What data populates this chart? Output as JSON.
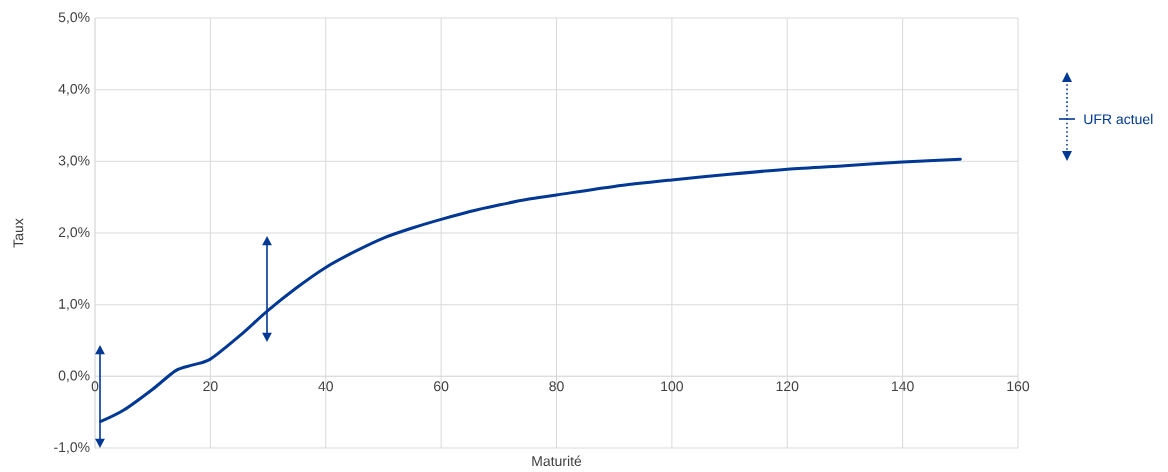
{
  "chart_data": {
    "type": "line",
    "xlabel": "Maturité",
    "ylabel": "Taux",
    "x": [
      1,
      5,
      10,
      14,
      17,
      20,
      25,
      30,
      35,
      40,
      45,
      50,
      55,
      60,
      65,
      70,
      75,
      80,
      90,
      100,
      110,
      120,
      130,
      140,
      150
    ],
    "series": [
      {
        "color": "#003893",
        "values": [
          -0.63,
          -0.47,
          -0.18,
          0.08,
          0.16,
          0.24,
          0.56,
          0.92,
          1.24,
          1.52,
          1.74,
          1.93,
          2.07,
          2.19,
          2.3,
          2.39,
          2.47,
          2.53,
          2.65,
          2.74,
          2.82,
          2.89,
          2.94,
          2.99,
          3.03
        ]
      }
    ],
    "xlim": [
      0,
      160
    ],
    "xticks": [
      0,
      20,
      40,
      60,
      80,
      100,
      120,
      140,
      160
    ],
    "ylim": [
      -1,
      5
    ],
    "yticks": [
      {
        "value": -1,
        "label": "-1,0%"
      },
      {
        "value": 0,
        "label": "0,0%"
      },
      {
        "value": 1,
        "label": "1,0%"
      },
      {
        "value": 2,
        "label": "2,0%"
      },
      {
        "value": 3,
        "label": "3,0%"
      },
      {
        "value": 4,
        "label": "4,0%"
      },
      {
        "value": 5,
        "label": "5,0%"
      }
    ],
    "grid": true,
    "marker": "none",
    "line_style": "solid",
    "annotations": [
      "UFR actuel"
    ]
  }
}
